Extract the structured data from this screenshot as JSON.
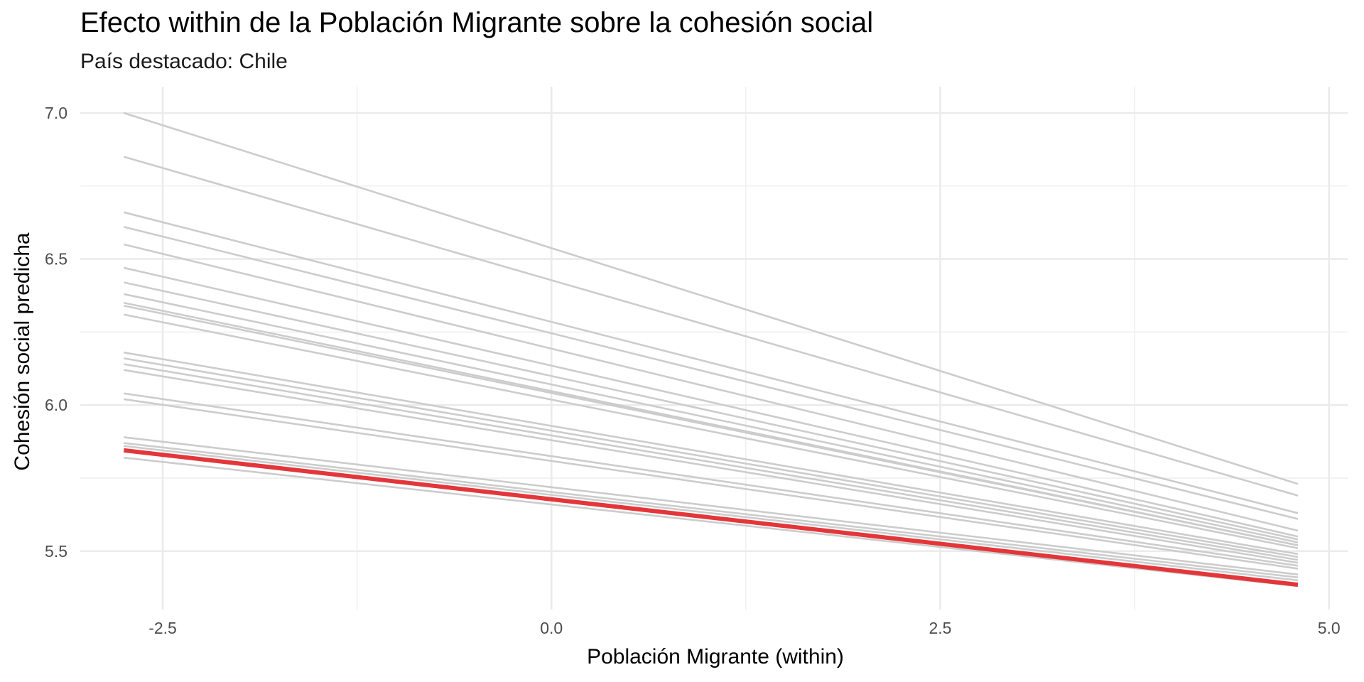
{
  "chart_data": {
    "type": "line",
    "title": "Efecto within de la Población Migrante sobre la cohesión social",
    "subtitle": "País destacado: Chile",
    "xlabel": "Población Migrante (within)",
    "ylabel": "Cohesión social predicha",
    "xlim": [
      -3.03,
      5.12
    ],
    "ylim": [
      5.3,
      7.09
    ],
    "x_ticks": [
      -2.5,
      0.0,
      2.5,
      5.0
    ],
    "x_tick_labels": [
      "-2.5",
      "0.0",
      "2.5",
      "5.0"
    ],
    "y_ticks": [
      5.5,
      6.0,
      6.5,
      7.0
    ],
    "y_tick_labels": [
      "5.5",
      "6.0",
      "6.5",
      "7.0"
    ],
    "grid": true,
    "colors": {
      "highlight": "#e3363a",
      "background_lines": "#cccccc",
      "grid": "#ebebeb"
    },
    "x": [
      -2.75,
      4.8
    ],
    "series": [
      {
        "values": [
          7.0,
          5.73
        ]
      },
      {
        "values": [
          6.85,
          5.69
        ]
      },
      {
        "values": [
          6.66,
          5.63
        ]
      },
      {
        "values": [
          6.61,
          5.61
        ]
      },
      {
        "values": [
          6.55,
          5.57
        ]
      },
      {
        "values": [
          6.47,
          5.55
        ]
      },
      {
        "values": [
          6.42,
          5.54
        ]
      },
      {
        "values": [
          6.38,
          5.53
        ]
      },
      {
        "values": [
          6.35,
          5.52
        ]
      },
      {
        "values": [
          6.34,
          5.52
        ]
      },
      {
        "values": [
          6.31,
          5.51
        ]
      },
      {
        "values": [
          6.18,
          5.49
        ]
      },
      {
        "values": [
          6.16,
          5.48
        ]
      },
      {
        "values": [
          6.14,
          5.47
        ]
      },
      {
        "values": [
          6.12,
          5.46
        ]
      },
      {
        "values": [
          6.04,
          5.45
        ]
      },
      {
        "values": [
          6.02,
          5.44
        ]
      },
      {
        "values": [
          5.89,
          5.42
        ]
      },
      {
        "values": [
          5.87,
          5.41
        ]
      },
      {
        "values": [
          5.86,
          5.4
        ]
      },
      {
        "values": [
          5.82,
          5.38
        ]
      },
      {
        "values": [
          5.845,
          5.385
        ],
        "highlight": true
      }
    ]
  }
}
